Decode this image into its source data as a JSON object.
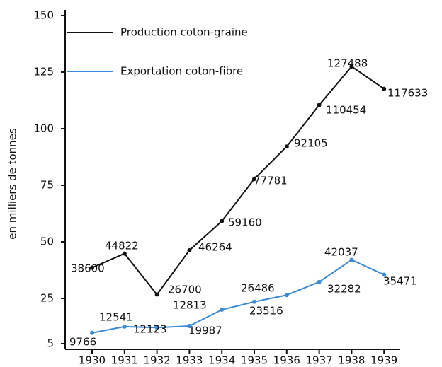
{
  "chart_data": {
    "type": "line",
    "y_label": "en milliers de tonnes",
    "categories": [
      "1930",
      "1931",
      "1932",
      "1933",
      "1934",
      "1935",
      "1936",
      "1937",
      "1938",
      "1939"
    ],
    "series": [
      {
        "name": "Production coton-graine",
        "color": "#111111",
        "values": [
          38.6,
          44.822,
          26.7,
          46.264,
          59.16,
          77.781,
          92.105,
          110.454,
          127.488,
          117.633
        ],
        "value_labels": [
          "38600",
          "44822",
          "26700",
          "46264",
          "59160",
          "77781",
          "92105",
          "110454",
          "127488",
          "117633"
        ]
      },
      {
        "name": "Exportation coton-fibre",
        "color": "#3a8ad8",
        "values": [
          9.766,
          12.541,
          12.123,
          12.813,
          19.987,
          23.516,
          26.486,
          32.282,
          42.037,
          35.471
        ],
        "value_labels": [
          "9766",
          "12541",
          "12123",
          "12813",
          "19987",
          "23516",
          "26486",
          "32282",
          "42037",
          "35471"
        ]
      }
    ],
    "ylim": [
      0,
      150
    ],
    "yticks": [
      5,
      25,
      50,
      75,
      100,
      125,
      150
    ]
  }
}
